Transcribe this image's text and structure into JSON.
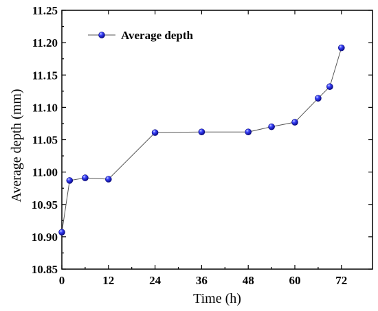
{
  "chart_data": {
    "type": "line",
    "xlabel": "Time (h)",
    "ylabel": "Average depth (mm)",
    "xlim": [
      0,
      80
    ],
    "ylim": [
      10.85,
      11.25
    ],
    "x_ticks": [
      0,
      12,
      24,
      36,
      48,
      60,
      72
    ],
    "y_ticks": [
      10.85,
      10.9,
      10.95,
      11.0,
      11.05,
      11.1,
      11.15,
      11.2,
      11.25
    ],
    "legend_position": "top-left",
    "grid": false,
    "series": [
      {
        "name": "Average depth",
        "color": "#1f1fd6",
        "x": [
          0,
          2,
          6,
          12,
          24,
          36,
          48,
          54,
          60,
          66,
          69,
          72
        ],
        "y": [
          10.907,
          10.987,
          10.991,
          10.989,
          11.061,
          11.062,
          11.062,
          11.07,
          11.077,
          11.114,
          11.132,
          11.192
        ]
      }
    ]
  }
}
